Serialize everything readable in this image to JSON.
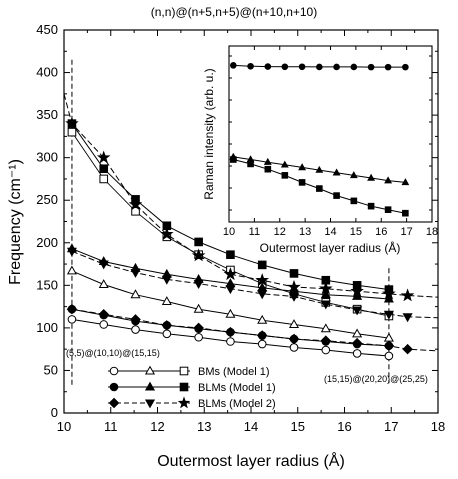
{
  "chart_data": {
    "type": "line",
    "title": "(n,n)@(n+5,n+5)@(n+10,n+10)",
    "xlabel": "Outermost layer radius (Å)",
    "ylabel": "Frequency (cm⁻¹)",
    "xlim": [
      10,
      18
    ],
    "ylim": [
      0,
      450
    ],
    "xticks": [
      "10",
      "11",
      "12",
      "13",
      "14",
      "15",
      "16",
      "17",
      "18"
    ],
    "yticks": [
      "0",
      "50",
      "100",
      "150",
      "200",
      "250",
      "300",
      "350",
      "400",
      "450"
    ],
    "x": [
      10.17,
      10.85,
      11.53,
      12.2,
      12.88,
      13.56,
      14.24,
      14.92,
      15.6,
      16.27,
      16.95
    ],
    "extrap_x": [
      17.35
    ],
    "series": [
      {
        "group": "BMs (Model 1)",
        "marker": "circle",
        "filled": false,
        "values": [
          110,
          104,
          98,
          93,
          89,
          84,
          81,
          77,
          74,
          70,
          67
        ]
      },
      {
        "group": "BMs (Model 1)",
        "marker": "triangle",
        "filled": false,
        "values": [
          167,
          151,
          139,
          131,
          122,
          116,
          109,
          104,
          99,
          93,
          88
        ]
      },
      {
        "group": "BMs (Model 1)",
        "marker": "square",
        "filled": false,
        "values": [
          330,
          275,
          237,
          207,
          186,
          168,
          152,
          140,
          130,
          122,
          114
        ]
      },
      {
        "group": "BLMs (Model 1)",
        "marker": "circle",
        "filled": true,
        "values": [
          122,
          115,
          108,
          103,
          99,
          95,
          91,
          87,
          84,
          81,
          79
        ]
      },
      {
        "group": "BLMs (Model 1)",
        "marker": "triangle",
        "filled": true,
        "values": [
          193,
          178,
          170,
          163,
          157,
          152,
          147,
          143,
          139,
          137,
          134
        ]
      },
      {
        "group": "BLMs (Model 1)",
        "marker": "square",
        "filled": true,
        "values": [
          340,
          287,
          251,
          220,
          201,
          186,
          174,
          164,
          156,
          150,
          145
        ]
      },
      {
        "group": "BLMs (Model 2)",
        "marker": "diamond",
        "filled": true,
        "values": [
          122,
          116,
          110,
          103,
          100,
          95,
          91,
          87,
          85,
          82,
          79
        ],
        "extrap": [
          75
        ]
      },
      {
        "group": "BLMs (Model 2)",
        "marker": "triangle-down",
        "filled": true,
        "values": [
          190,
          175,
          165,
          157,
          152,
          146,
          140,
          137,
          128,
          121,
          116
        ],
        "extrap": [
          113
        ]
      },
      {
        "group": "BLMs (Model 2)",
        "marker": "star",
        "filled": true,
        "values": [
          340,
          300,
          245,
          210,
          185,
          163,
          156,
          148,
          146,
          143,
          140
        ],
        "extrap": [
          138
        ]
      }
    ],
    "vlines": [
      10.17,
      16.95
    ],
    "annotations": [
      "(5,5)@(10,10)@(15,15)",
      "(15,15)@(20,20)@(25,25)"
    ],
    "legend": {
      "placement": "bottom-left",
      "entries": [
        "BMs (Model 1)",
        "BLMs (Model 1)",
        "BLMs (Model 2)"
      ]
    },
    "inset": {
      "xlabel": "Outermost layer radius (Å)",
      "ylabel": "Raman intensity (arb. u.)",
      "xlim": [
        10,
        18
      ],
      "xticks": [
        "10",
        "11",
        "12",
        "13",
        "14",
        "15",
        "16",
        "17",
        "18"
      ],
      "ylim": [
        0,
        1
      ],
      "x": [
        10.17,
        10.85,
        11.53,
        12.2,
        12.88,
        13.56,
        14.24,
        14.92,
        15.6,
        16.27,
        16.95
      ],
      "series": [
        {
          "marker": "circle",
          "values": [
            0.89,
            0.885,
            0.883,
            0.882,
            0.882,
            0.881,
            0.881,
            0.881,
            0.88,
            0.88,
            0.88
          ]
        },
        {
          "marker": "triangle",
          "values": [
            0.37,
            0.355,
            0.34,
            0.325,
            0.31,
            0.295,
            0.28,
            0.265,
            0.25,
            0.235,
            0.225
          ]
        },
        {
          "marker": "square",
          "values": [
            0.355,
            0.33,
            0.3,
            0.265,
            0.225,
            0.19,
            0.15,
            0.12,
            0.09,
            0.07,
            0.05
          ]
        }
      ]
    }
  }
}
